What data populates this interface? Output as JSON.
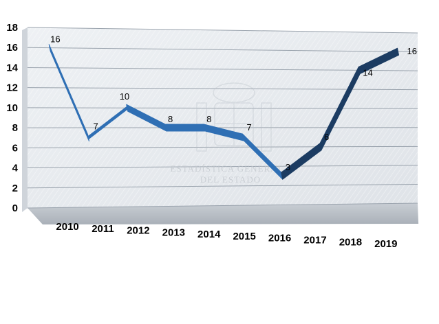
{
  "chart_data": {
    "type": "line",
    "title": "",
    "xlabel": "",
    "ylabel": "",
    "categories": [
      "2010",
      "2011",
      "2012",
      "2013",
      "2014",
      "2015",
      "2016",
      "2017",
      "2018",
      "2019"
    ],
    "series": [
      {
        "values": [
          16,
          7,
          10,
          8,
          8,
          7,
          3,
          6,
          14,
          16
        ]
      }
    ],
    "ylim": [
      0,
      18
    ],
    "yticks": [
      "0",
      "2",
      "4",
      "6",
      "8",
      "10",
      "12",
      "14",
      "16",
      "18"
    ],
    "grid": true,
    "legend": "none",
    "style": "3d-ribbon",
    "colors": {
      "ribbon_face": "#2f6fb4",
      "ribbon_dark": "#1c3c62",
      "wall": "#e4e8ec",
      "floor": "#b9bfc6",
      "gridline": "#9aa3ad"
    }
  },
  "watermark": {
    "line1": "ESTADÍSTICA GENERAL",
    "line2": "DEL ESTADO"
  }
}
